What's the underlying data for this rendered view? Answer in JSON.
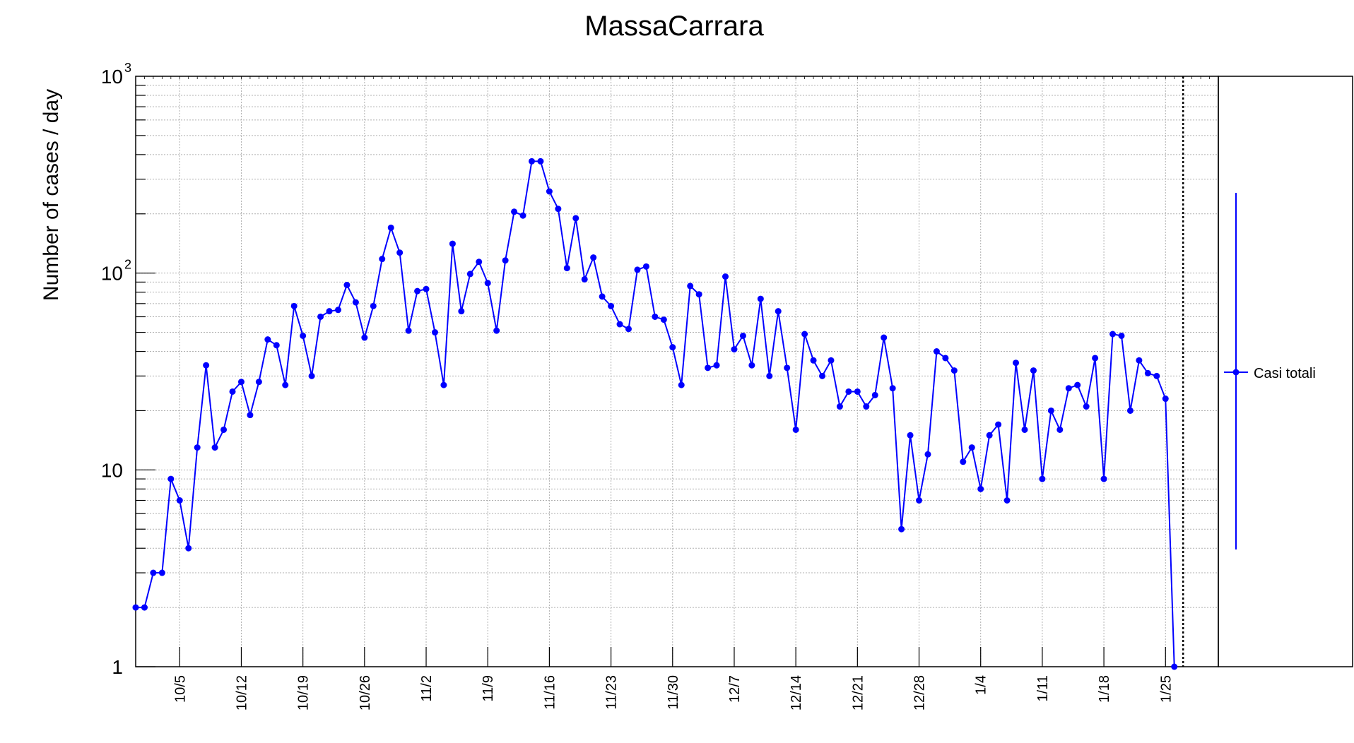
{
  "chart_data": {
    "type": "line",
    "title": "MassaCarrara",
    "xlabel": "",
    "ylabel": "Number of cases / day",
    "y_scale": "log",
    "ylim": [
      1,
      1000
    ],
    "y_ticks": [
      {
        "value": 1,
        "base": "1",
        "exp": ""
      },
      {
        "value": 10,
        "base": "10",
        "exp": ""
      },
      {
        "value": 100,
        "base": "10",
        "exp": "2"
      },
      {
        "value": 1000,
        "base": "10",
        "exp": "3"
      }
    ],
    "xlim": [
      "2020-09-30",
      "2021-01-31"
    ],
    "x_ticks": [
      {
        "date": "2020-10-05",
        "label": "10/5"
      },
      {
        "date": "2020-10-12",
        "label": "10/12"
      },
      {
        "date": "2020-10-19",
        "label": "10/19"
      },
      {
        "date": "2020-10-26",
        "label": "10/26"
      },
      {
        "date": "2020-11-02",
        "label": "11/2"
      },
      {
        "date": "2020-11-09",
        "label": "11/9"
      },
      {
        "date": "2020-11-16",
        "label": "11/16"
      },
      {
        "date": "2020-11-23",
        "label": "11/23"
      },
      {
        "date": "2020-11-30",
        "label": "11/30"
      },
      {
        "date": "2020-12-07",
        "label": "12/7"
      },
      {
        "date": "2020-12-14",
        "label": "12/14"
      },
      {
        "date": "2020-12-21",
        "label": "12/21"
      },
      {
        "date": "2020-12-28",
        "label": "12/28"
      },
      {
        "date": "2021-01-04",
        "label": "1/4"
      },
      {
        "date": "2021-01-11",
        "label": "1/11"
      },
      {
        "date": "2021-01-18",
        "label": "1/18"
      },
      {
        "date": "2021-01-25",
        "label": "1/25"
      }
    ],
    "grid": true,
    "vertical_marker_date": "2021-01-27",
    "series": [
      {
        "name": "Casi totali",
        "color": "#0000ff",
        "x": [
          "2020-09-30",
          "2020-10-01",
          "2020-10-02",
          "2020-10-03",
          "2020-10-04",
          "2020-10-05",
          "2020-10-06",
          "2020-10-07",
          "2020-10-08",
          "2020-10-09",
          "2020-10-10",
          "2020-10-11",
          "2020-10-12",
          "2020-10-13",
          "2020-10-14",
          "2020-10-15",
          "2020-10-16",
          "2020-10-17",
          "2020-10-18",
          "2020-10-19",
          "2020-10-20",
          "2020-10-21",
          "2020-10-22",
          "2020-10-23",
          "2020-10-24",
          "2020-10-25",
          "2020-10-26",
          "2020-10-27",
          "2020-10-28",
          "2020-10-29",
          "2020-10-30",
          "2020-10-31",
          "2020-11-01",
          "2020-11-02",
          "2020-11-03",
          "2020-11-04",
          "2020-11-05",
          "2020-11-06",
          "2020-11-07",
          "2020-11-08",
          "2020-11-09",
          "2020-11-10",
          "2020-11-11",
          "2020-11-12",
          "2020-11-13",
          "2020-11-14",
          "2020-11-15",
          "2020-11-16",
          "2020-11-17",
          "2020-11-18",
          "2020-11-19",
          "2020-11-20",
          "2020-11-21",
          "2020-11-22",
          "2020-11-23",
          "2020-11-24",
          "2020-11-25",
          "2020-11-26",
          "2020-11-27",
          "2020-11-28",
          "2020-11-29",
          "2020-11-30",
          "2020-12-01",
          "2020-12-02",
          "2020-12-03",
          "2020-12-04",
          "2020-12-05",
          "2020-12-06",
          "2020-12-07",
          "2020-12-08",
          "2020-12-09",
          "2020-12-10",
          "2020-12-11",
          "2020-12-12",
          "2020-12-13",
          "2020-12-14",
          "2020-12-15",
          "2020-12-16",
          "2020-12-17",
          "2020-12-18",
          "2020-12-19",
          "2020-12-20",
          "2020-12-21",
          "2020-12-22",
          "2020-12-23",
          "2020-12-24",
          "2020-12-25",
          "2020-12-26",
          "2020-12-27",
          "2020-12-28",
          "2020-12-29",
          "2020-12-30",
          "2020-12-31",
          "2021-01-01",
          "2021-01-02",
          "2021-01-03",
          "2021-01-04",
          "2021-01-05",
          "2021-01-06",
          "2021-01-07",
          "2021-01-08",
          "2021-01-09",
          "2021-01-10",
          "2021-01-11",
          "2021-01-12",
          "2021-01-13",
          "2021-01-14",
          "2021-01-15",
          "2021-01-16",
          "2021-01-17",
          "2021-01-18",
          "2021-01-19",
          "2021-01-20",
          "2021-01-21",
          "2021-01-22",
          "2021-01-23",
          "2021-01-24",
          "2021-01-25",
          "2021-01-26"
        ],
        "values": [
          2,
          2,
          3,
          3,
          9,
          7,
          4,
          13,
          34,
          13,
          16,
          25,
          28,
          19,
          28,
          46,
          43,
          27,
          68,
          48,
          30,
          60,
          64,
          65,
          87,
          71,
          47,
          68,
          118,
          170,
          127,
          51,
          81,
          83,
          50,
          27,
          141,
          64,
          99,
          114,
          89,
          51,
          116,
          205,
          196,
          370,
          370,
          260,
          212,
          106,
          190,
          93,
          120,
          76,
          68,
          55,
          52,
          104,
          108,
          60,
          58,
          42,
          27,
          86,
          78,
          33,
          34,
          96,
          41,
          48,
          34,
          74,
          30,
          64,
          33,
          16,
          49,
          36,
          30,
          36,
          21,
          25,
          25,
          21,
          24,
          47,
          26,
          5,
          15,
          7,
          12,
          40,
          37,
          32,
          11,
          13,
          8,
          15,
          17,
          7,
          35,
          16,
          32,
          9,
          20,
          16,
          26,
          27,
          21,
          37,
          9,
          49,
          48,
          20,
          36,
          31,
          30,
          23,
          1
        ]
      }
    ],
    "legend": {
      "position": "right",
      "label": "Casi totali"
    }
  }
}
